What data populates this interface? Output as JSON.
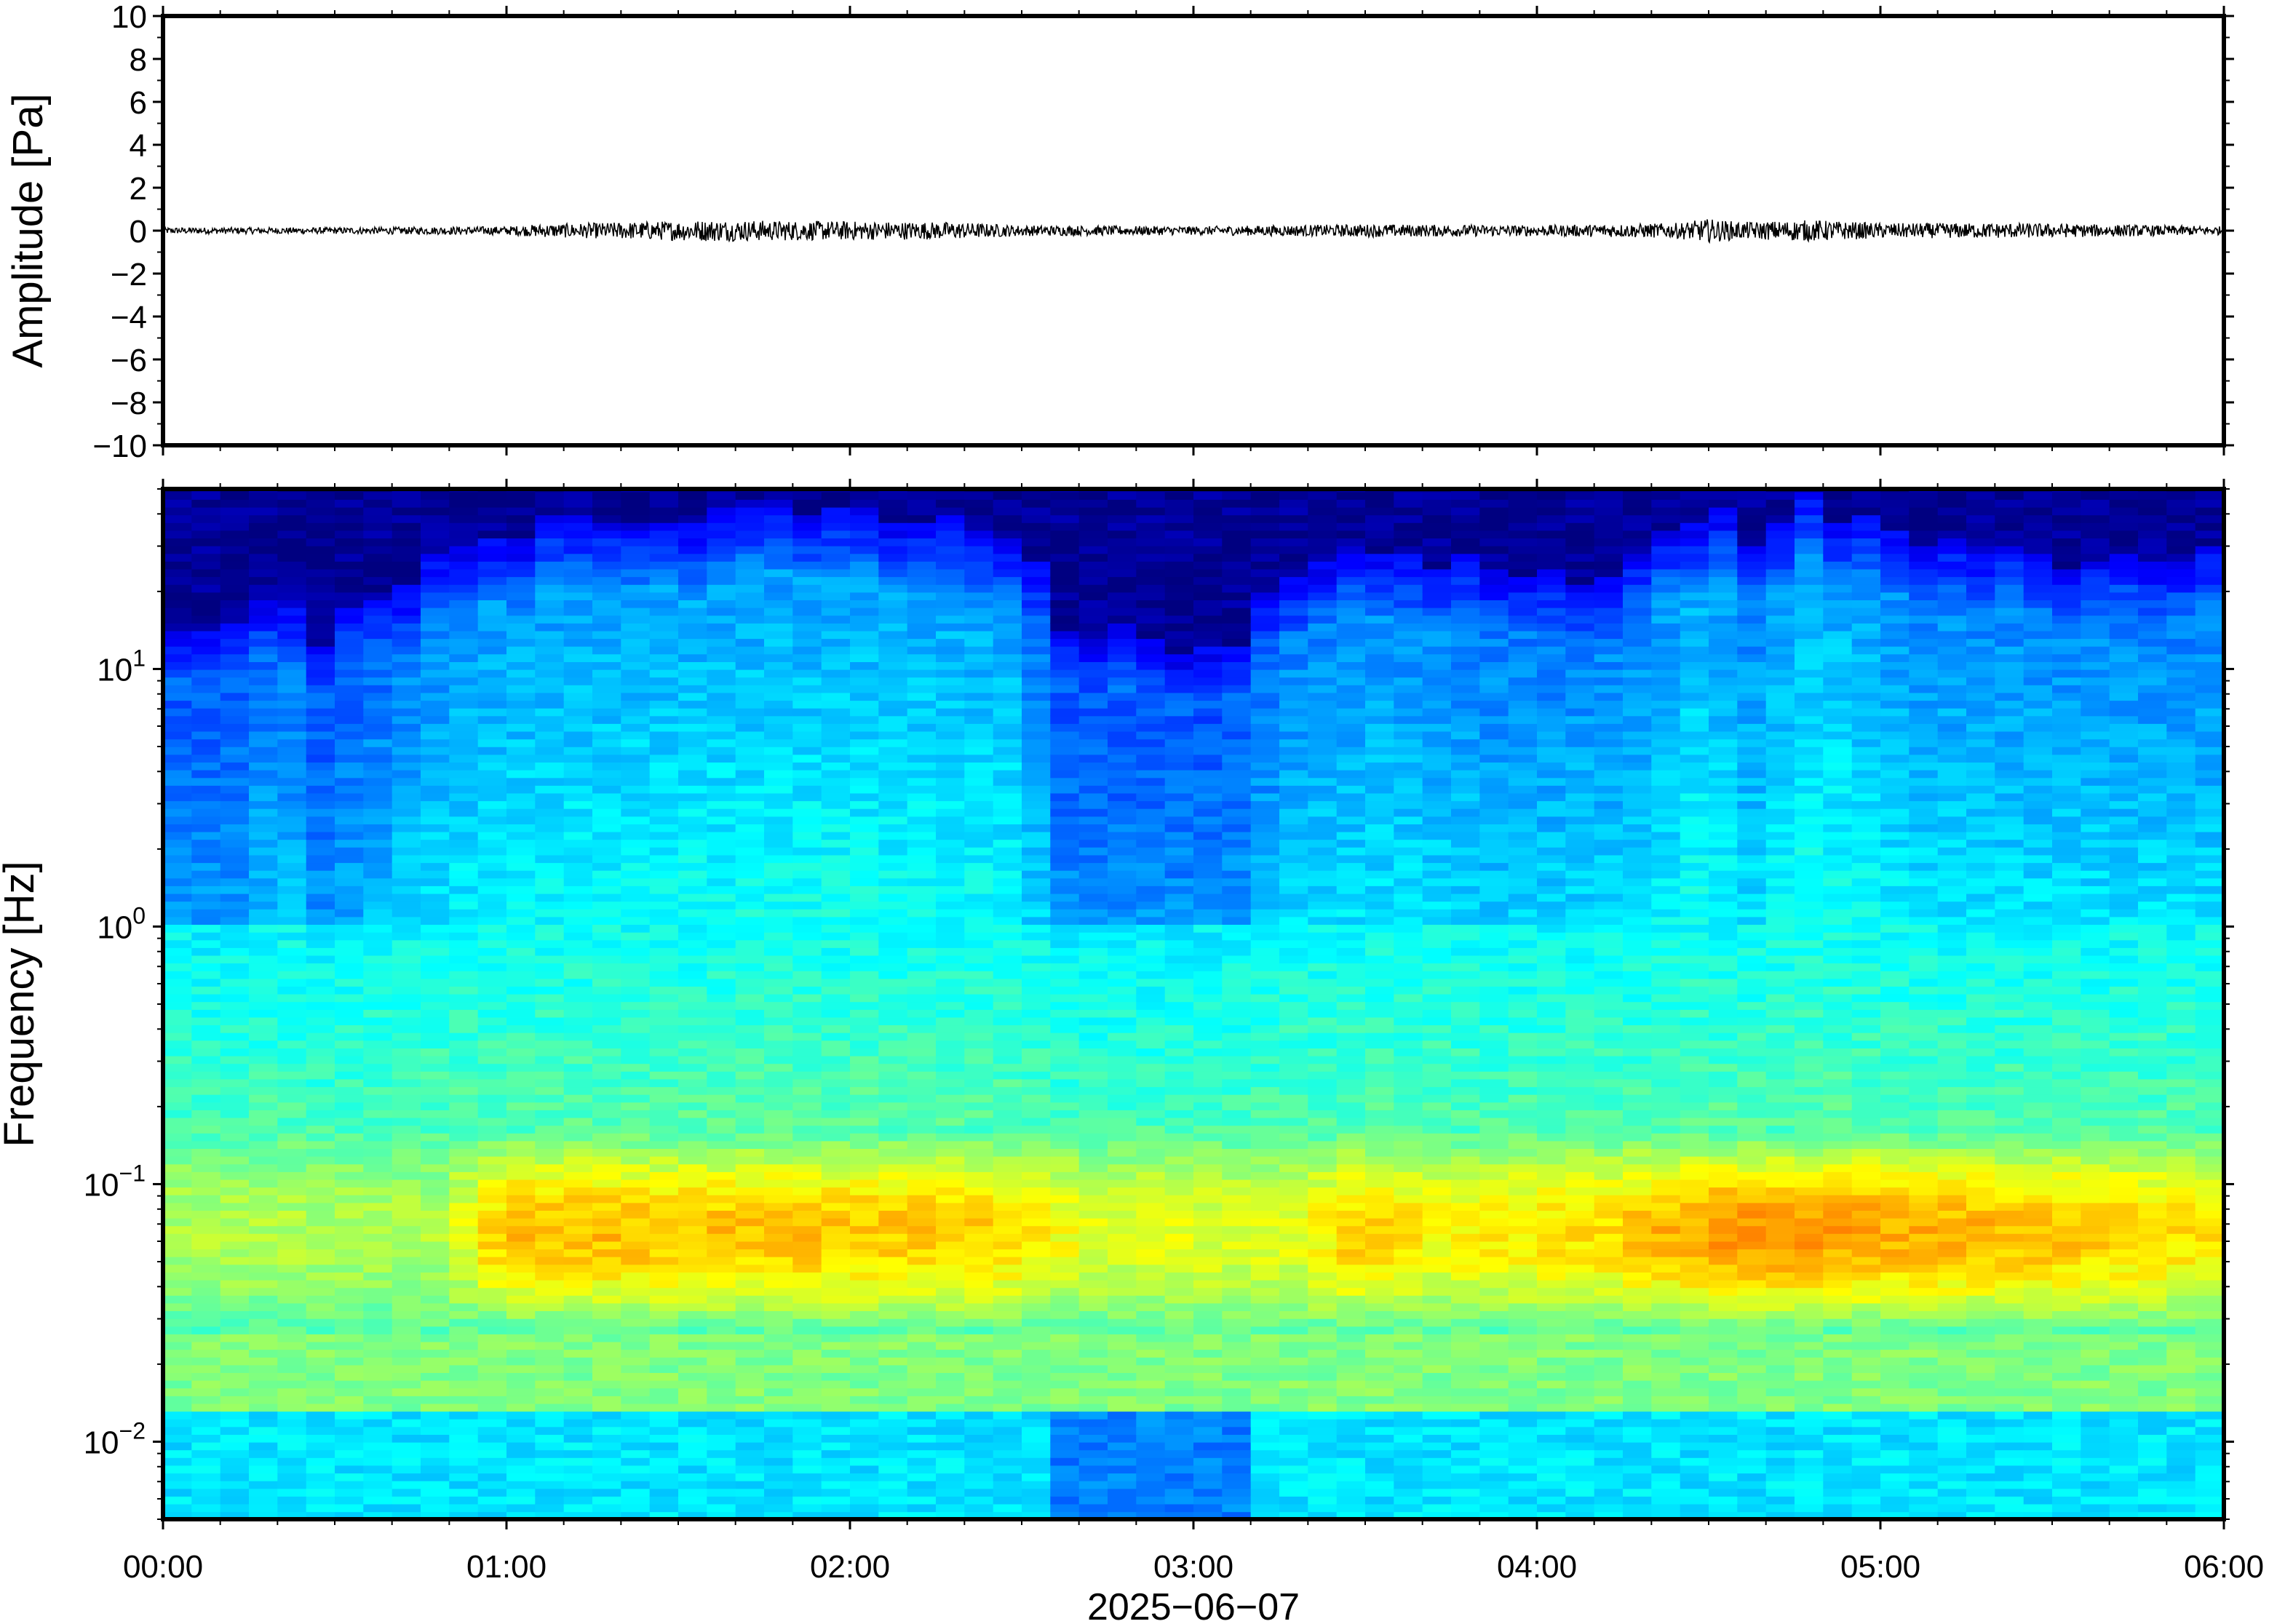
{
  "chart_data": [
    {
      "type": "line",
      "ylabel": "Amplitude [Pa]",
      "ylim": [
        -10,
        10
      ],
      "y_ticks": [
        "10",
        "8",
        "6",
        "4",
        "2",
        "0",
        "−2",
        "−4",
        "−6",
        "−8",
        "−10"
      ],
      "y_tick_values": [
        10,
        8,
        6,
        4,
        2,
        0,
        -2,
        -4,
        -6,
        -8,
        -10
      ],
      "xlim_hours": [
        0,
        6
      ],
      "series": [
        {
          "x_hours": [
            0.0,
            0.5,
            1.0,
            1.1,
            1.6,
            1.9,
            2.3,
            2.5,
            3.0,
            3.5,
            4.0,
            4.4,
            4.5,
            4.6,
            4.8,
            5.0,
            5.4,
            6.0
          ],
          "envelope": [
            0.15,
            0.15,
            0.2,
            0.3,
            0.5,
            0.45,
            0.4,
            0.25,
            0.2,
            0.3,
            0.25,
            0.35,
            0.55,
            0.4,
            0.5,
            0.35,
            0.35,
            0.2
          ]
        }
      ],
      "grid": false
    },
    {
      "type": "heatmap",
      "ylabel": "Frequency [Hz]",
      "yscale": "log",
      "ylim": [
        0.005,
        50
      ],
      "y_tick_labels": [
        {
          "base": "10",
          "exp": "1",
          "value": 10
        },
        {
          "base": "10",
          "exp": "0",
          "value": 1
        },
        {
          "base": "10",
          "exp": "−1",
          "value": 0.1
        },
        {
          "base": "10",
          "exp": "−2",
          "value": 0.01
        }
      ],
      "xlim_hours": [
        0,
        6
      ],
      "x_ticks": [
        "00:00",
        "01:00",
        "02:00",
        "03:00",
        "04:00",
        "05:00",
        "06:00"
      ],
      "x_tick_hours": [
        0,
        1,
        2,
        3,
        4,
        5,
        6
      ],
      "xlabel": "2025−06−07",
      "colormap": "jet",
      "grid": false
    }
  ]
}
